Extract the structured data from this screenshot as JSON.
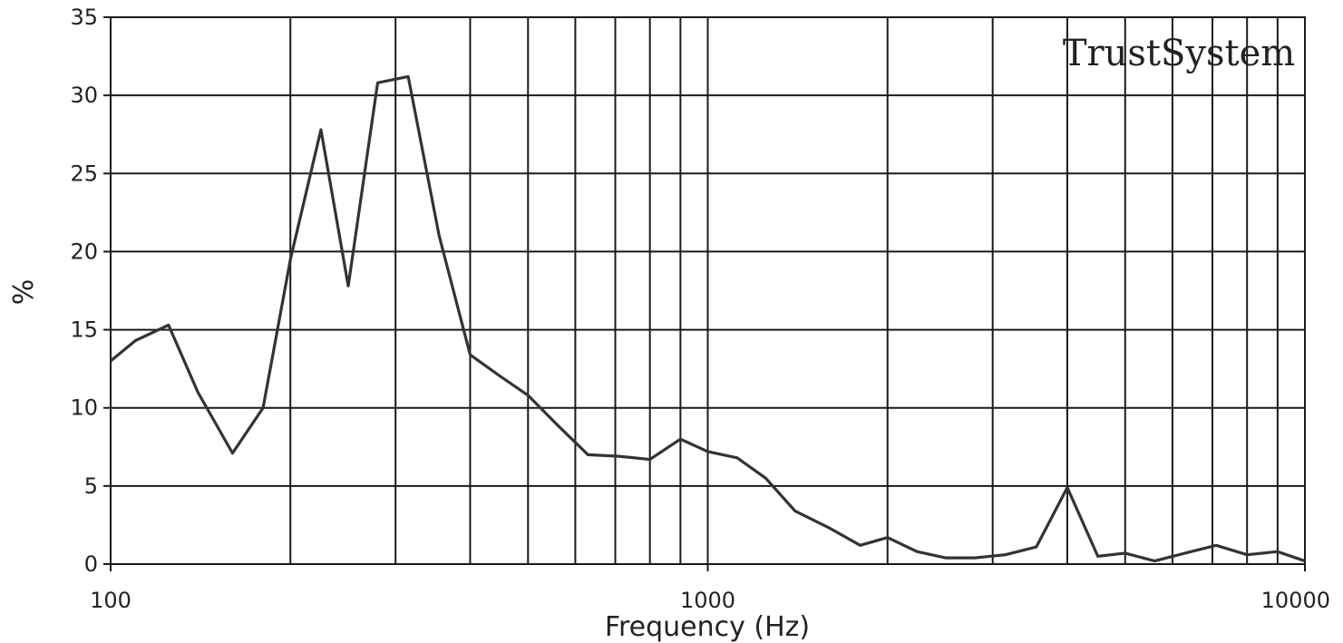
{
  "watermark": "TrustSystem",
  "chart_data": {
    "type": "line",
    "title": "",
    "xlabel": "Frequency (Hz)",
    "ylabel": "%",
    "xscale": "log",
    "xlim": [
      100,
      10000
    ],
    "ylim": [
      0,
      35
    ],
    "x_ticks": [
      100,
      1000,
      10000
    ],
    "x_tick_labels": [
      "100",
      "1000",
      "10000"
    ],
    "y_ticks": [
      0,
      5,
      10,
      15,
      20,
      25,
      30,
      35
    ],
    "y_tick_labels": [
      "0",
      "5",
      "10",
      "15",
      "20",
      "25",
      "30",
      "35"
    ],
    "x_minor_gridlines": [
      200,
      300,
      400,
      500,
      600,
      700,
      800,
      900,
      2000,
      3000,
      4000,
      5000,
      6000,
      7000,
      8000,
      9000
    ],
    "grid": true,
    "legend": "none",
    "series": [
      {
        "x": [
          100,
          110,
          125,
          140,
          160,
          180,
          200,
          225,
          250,
          280,
          315,
          355,
          400,
          450,
          500,
          560,
          630,
          710,
          800,
          900,
          1000,
          1120,
          1250,
          1400,
          1600,
          1800,
          2000,
          2240,
          2500,
          2800,
          3150,
          3550,
          4000,
          4500,
          5000,
          5600,
          6300,
          7100,
          8000,
          9000,
          10000
        ],
        "y": [
          13.0,
          14.3,
          15.3,
          11.0,
          7.1,
          10.0,
          19.5,
          27.8,
          17.8,
          30.8,
          31.2,
          21.0,
          13.4,
          12.0,
          10.8,
          8.9,
          7.0,
          6.9,
          6.7,
          8.0,
          7.2,
          6.8,
          5.5,
          3.4,
          2.3,
          1.2,
          1.7,
          0.8,
          0.4,
          0.4,
          0.6,
          1.1,
          4.9,
          0.5,
          0.7,
          0.2,
          0.7,
          1.2,
          0.6,
          0.8,
          0.2
        ],
        "color": "#333333"
      }
    ]
  }
}
